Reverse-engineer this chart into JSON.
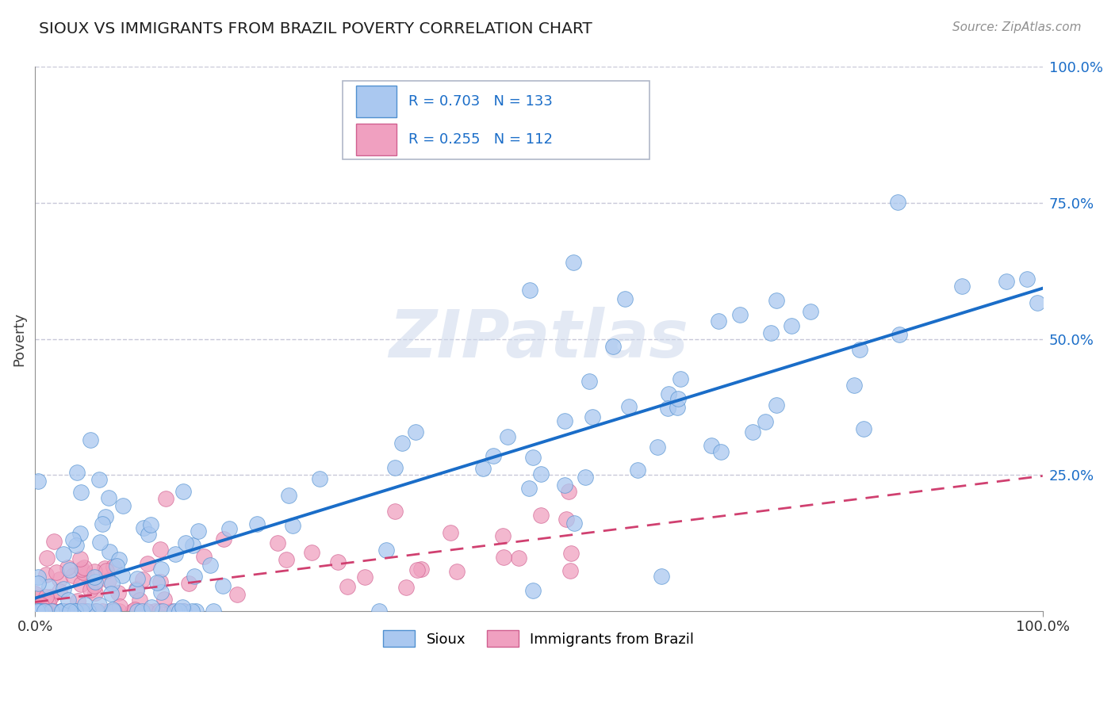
{
  "title": "SIOUX VS IMMIGRANTS FROM BRAZIL POVERTY CORRELATION CHART",
  "source_text": "Source: ZipAtlas.com",
  "ylabel": "Poverty",
  "xlim": [
    0.0,
    1.0
  ],
  "ylim": [
    0.0,
    1.0
  ],
  "sioux_R": 0.703,
  "sioux_N": 133,
  "brazil_R": 0.255,
  "brazil_N": 112,
  "sioux_color": "#aac8f0",
  "sioux_edge_color": "#5090d0",
  "sioux_line_color": "#1a6dc8",
  "brazil_color": "#f0a0c0",
  "brazil_edge_color": "#d06090",
  "brazil_line_color": "#d04070",
  "legend_R_color": "#1a6dc8",
  "watermark": "ZIPatlas",
  "background_color": "#ffffff",
  "grid_color": "#c8c8d8",
  "title_color": "#202020",
  "sioux_slope": 0.65,
  "sioux_intercept": 0.0,
  "brazil_slope": 0.3,
  "brazil_intercept": 0.0
}
